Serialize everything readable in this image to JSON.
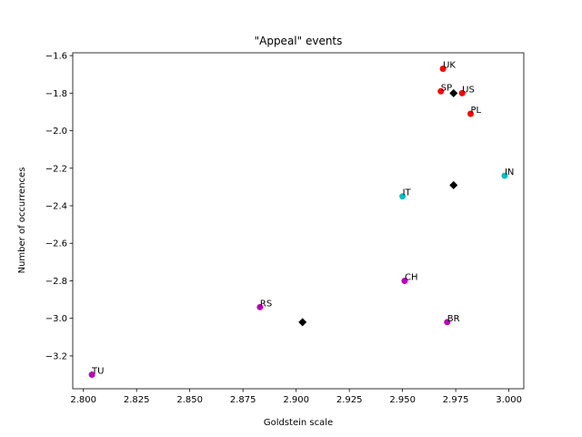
{
  "chart_data": {
    "type": "scatter",
    "title": "\"Appeal\" events",
    "xlabel": "Goldstein scale",
    "ylabel": "Number of occurrences",
    "xlim": [
      2.795,
      3.007
    ],
    "ylim": [
      -3.375,
      -1.585
    ],
    "xticks": [
      2.8,
      2.825,
      2.85,
      2.875,
      2.9,
      2.925,
      2.95,
      2.975,
      3.0
    ],
    "xtick_labels": [
      "2.800",
      "2.825",
      "2.850",
      "2.875",
      "2.900",
      "2.925",
      "2.950",
      "2.975",
      "3.000"
    ],
    "yticks": [
      -3.2,
      -3.0,
      -2.8,
      -2.6,
      -2.4,
      -2.2,
      -2.0,
      -1.8,
      -1.6
    ],
    "ytick_labels": [
      "−3.2",
      "−3.0",
      "−2.8",
      "−2.6",
      "−2.4",
      "−2.2",
      "−2.0",
      "−1.8",
      "−1.6"
    ],
    "grid": false,
    "points": [
      {
        "label": "UK",
        "x": 2.969,
        "y": -1.67,
        "color": "#ff0000"
      },
      {
        "label": "SP",
        "x": 2.968,
        "y": -1.79,
        "color": "#ff0000"
      },
      {
        "label": "US",
        "x": 2.978,
        "y": -1.8,
        "color": "#ff0000"
      },
      {
        "label": "PL",
        "x": 2.982,
        "y": -1.91,
        "color": "#ff0000"
      },
      {
        "label": "IN",
        "x": 2.998,
        "y": -2.24,
        "color": "#00bfbf"
      },
      {
        "label": "IT",
        "x": 2.95,
        "y": -2.35,
        "color": "#00bfbf"
      },
      {
        "label": "CH",
        "x": 2.951,
        "y": -2.8,
        "color": "#bf00bf"
      },
      {
        "label": "RS",
        "x": 2.883,
        "y": -2.94,
        "color": "#bf00bf"
      },
      {
        "label": "BR",
        "x": 2.971,
        "y": -3.02,
        "color": "#bf00bf"
      },
      {
        "label": "TU",
        "x": 2.804,
        "y": -3.3,
        "color": "#bf00bf"
      }
    ],
    "centroids": [
      {
        "x": 2.974,
        "y": -1.8,
        "color": "#000000"
      },
      {
        "x": 2.974,
        "y": -2.29,
        "color": "#000000"
      },
      {
        "x": 2.903,
        "y": -3.02,
        "color": "#000000"
      }
    ]
  }
}
